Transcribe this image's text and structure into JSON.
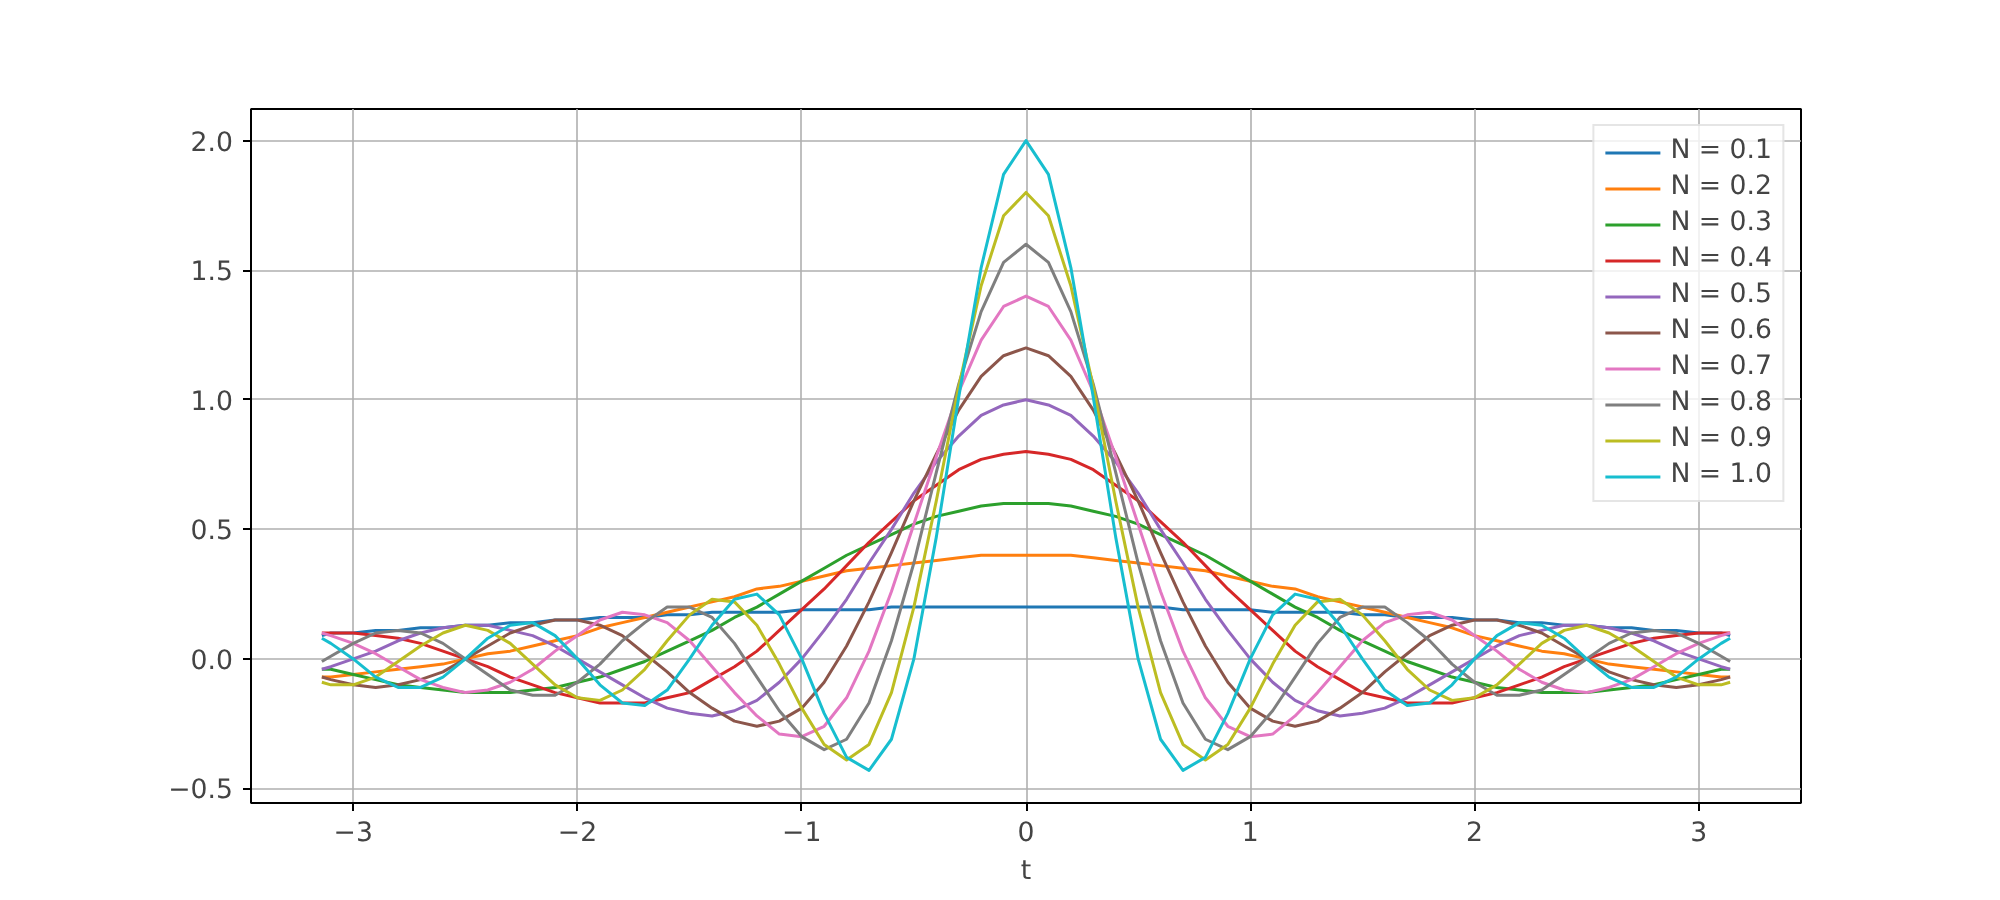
{
  "chart_data": {
    "type": "line",
    "xlabel": "t",
    "x": [
      -3.14,
      -3.1,
      -3.0,
      -2.9,
      -2.8,
      -2.7,
      -2.6,
      -2.5,
      -2.4,
      -2.3,
      -2.2,
      -2.1,
      -2.0,
      -1.9,
      -1.8,
      -1.7,
      -1.6,
      -1.5,
      -1.4,
      -1.3,
      -1.2,
      -1.1,
      -1.0,
      -0.9,
      -0.8,
      -0.7,
      -0.6,
      -0.5,
      -0.4,
      -0.3,
      -0.2,
      -0.1,
      0,
      0.1,
      0.2,
      0.3,
      0.4,
      0.5,
      0.6,
      0.7,
      0.8,
      0.9,
      1.0,
      1.1,
      1.2,
      1.3,
      1.4,
      1.5,
      1.6,
      1.7,
      1.8,
      1.9,
      2.0,
      2.1,
      2.2,
      2.3,
      2.4,
      2.5,
      2.6,
      2.7,
      2.8,
      2.9,
      3.0,
      3.1,
      3.14
    ],
    "series": [
      {
        "name": "N = 0.1",
        "color": "#1f77b4",
        "values": [
          0.09,
          0.1,
          0.1,
          0.11,
          0.11,
          0.12,
          0.12,
          0.13,
          0.13,
          0.14,
          0.14,
          0.15,
          0.15,
          0.16,
          0.16,
          0.16,
          0.17,
          0.17,
          0.18,
          0.18,
          0.18,
          0.18,
          0.19,
          0.19,
          0.19,
          0.19,
          0.2,
          0.2,
          0.2,
          0.2,
          0.2,
          0.2,
          0.2,
          0.2,
          0.2,
          0.2,
          0.2,
          0.2,
          0.2,
          0.19,
          0.19,
          0.19,
          0.19,
          0.18,
          0.18,
          0.18,
          0.18,
          0.17,
          0.17,
          0.16,
          0.16,
          0.16,
          0.15,
          0.15,
          0.14,
          0.14,
          0.13,
          0.13,
          0.12,
          0.12,
          0.11,
          0.11,
          0.1,
          0.1,
          0.09
        ]
      },
      {
        "name": "N = 0.2",
        "color": "#ff7f0e",
        "values": [
          -0.07,
          -0.07,
          -0.06,
          -0.05,
          -0.04,
          -0.03,
          -0.02,
          0,
          0.02,
          0.03,
          0.05,
          0.07,
          0.09,
          0.12,
          0.14,
          0.16,
          0.18,
          0.2,
          0.22,
          0.24,
          0.27,
          0.28,
          0.3,
          0.32,
          0.34,
          0.35,
          0.36,
          0.37,
          0.38,
          0.39,
          0.4,
          0.4,
          0.4,
          0.4,
          0.4,
          0.39,
          0.38,
          0.37,
          0.36,
          0.35,
          0.34,
          0.32,
          0.3,
          0.28,
          0.27,
          0.24,
          0.22,
          0.2,
          0.18,
          0.16,
          0.14,
          0.12,
          0.09,
          0.07,
          0.05,
          0.03,
          0.02,
          0,
          -0.02,
          -0.03,
          -0.04,
          -0.05,
          -0.06,
          -0.07,
          -0.07
        ]
      },
      {
        "name": "N = 0.3",
        "color": "#2ca02c",
        "values": [
          -0.04,
          -0.04,
          -0.06,
          -0.08,
          -0.1,
          -0.11,
          -0.12,
          -0.13,
          -0.13,
          -0.13,
          -0.12,
          -0.11,
          -0.09,
          -0.07,
          -0.04,
          -0.01,
          0.03,
          0.07,
          0.11,
          0.16,
          0.2,
          0.25,
          0.3,
          0.35,
          0.4,
          0.44,
          0.48,
          0.52,
          0.55,
          0.57,
          0.59,
          0.6,
          0.6,
          0.6,
          0.59,
          0.57,
          0.55,
          0.52,
          0.48,
          0.44,
          0.4,
          0.35,
          0.3,
          0.25,
          0.2,
          0.16,
          0.11,
          0.07,
          0.03,
          -0.01,
          -0.04,
          -0.07,
          -0.09,
          -0.11,
          -0.12,
          -0.13,
          -0.13,
          -0.13,
          -0.12,
          -0.11,
          -0.1,
          -0.08,
          -0.06,
          -0.04,
          -0.04
        ]
      },
      {
        "name": "N = 0.4",
        "color": "#d62728",
        "values": [
          0.1,
          0.1,
          0.1,
          0.09,
          0.08,
          0.06,
          0.03,
          0,
          -0.03,
          -0.07,
          -0.1,
          -0.13,
          -0.15,
          -0.17,
          -0.17,
          -0.17,
          -0.15,
          -0.13,
          -0.08,
          -0.03,
          0.03,
          0.11,
          0.19,
          0.27,
          0.36,
          0.45,
          0.53,
          0.61,
          0.67,
          0.73,
          0.77,
          0.79,
          0.8,
          0.79,
          0.77,
          0.73,
          0.67,
          0.61,
          0.53,
          0.45,
          0.36,
          0.27,
          0.19,
          0.11,
          0.03,
          -0.03,
          -0.08,
          -0.13,
          -0.15,
          -0.17,
          -0.17,
          -0.17,
          -0.15,
          -0.13,
          -0.1,
          -0.07,
          -0.03,
          0,
          0.03,
          0.06,
          0.08,
          0.09,
          0.1,
          0.1,
          0.1
        ]
      },
      {
        "name": "N = 0.5",
        "color": "#9467bd",
        "values": [
          -0.04,
          -0.03,
          0,
          0.03,
          0.07,
          0.1,
          0.12,
          0.13,
          0.13,
          0.11,
          0.09,
          0.05,
          0,
          -0.05,
          -0.1,
          -0.15,
          -0.19,
          -0.21,
          -0.22,
          -0.2,
          -0.16,
          -0.09,
          0,
          0.11,
          0.23,
          0.37,
          0.5,
          0.64,
          0.76,
          0.86,
          0.94,
          0.98,
          1.0,
          0.98,
          0.94,
          0.86,
          0.76,
          0.64,
          0.5,
          0.37,
          0.23,
          0.11,
          0,
          -0.09,
          -0.16,
          -0.2,
          -0.22,
          -0.21,
          -0.19,
          -0.15,
          -0.1,
          -0.05,
          0,
          0.05,
          0.09,
          0.11,
          0.13,
          0.13,
          0.12,
          0.1,
          0.07,
          0.03,
          0,
          -0.03,
          -0.04
        ]
      },
      {
        "name": "N = 0.6",
        "color": "#8c564b",
        "values": [
          -0.07,
          -0.08,
          -0.1,
          -0.11,
          -0.1,
          -0.08,
          -0.05,
          0,
          0.05,
          0.1,
          0.13,
          0.15,
          0.15,
          0.13,
          0.09,
          0.02,
          -0.05,
          -0.13,
          -0.19,
          -0.24,
          -0.26,
          -0.24,
          -0.19,
          -0.09,
          0.05,
          0.22,
          0.41,
          0.61,
          0.79,
          0.96,
          1.09,
          1.17,
          1.2,
          1.17,
          1.09,
          0.96,
          0.79,
          0.61,
          0.41,
          0.22,
          0.05,
          -0.09,
          -0.19,
          -0.24,
          -0.26,
          -0.24,
          -0.19,
          -0.13,
          -0.05,
          0.02,
          0.09,
          0.13,
          0.15,
          0.15,
          0.13,
          0.1,
          0.05,
          0,
          -0.05,
          -0.08,
          -0.1,
          -0.11,
          -0.1,
          -0.08,
          -0.07
        ]
      },
      {
        "name": "N = 0.7",
        "color": "#e377c2",
        "values": [
          0.1,
          0.09,
          0.06,
          0.02,
          -0.03,
          -0.08,
          -0.11,
          -0.13,
          -0.12,
          -0.09,
          -0.04,
          0.03,
          0.09,
          0.15,
          0.18,
          0.17,
          0.14,
          0.07,
          -0.03,
          -0.13,
          -0.22,
          -0.29,
          -0.3,
          -0.26,
          -0.15,
          0.03,
          0.26,
          0.52,
          0.78,
          1.03,
          1.23,
          1.36,
          1.4,
          1.36,
          1.23,
          1.03,
          0.78,
          0.52,
          0.26,
          0.03,
          -0.15,
          -0.26,
          -0.3,
          -0.29,
          -0.22,
          -0.13,
          -0.03,
          0.07,
          0.14,
          0.17,
          0.18,
          0.15,
          0.09,
          0.03,
          -0.04,
          -0.09,
          -0.12,
          -0.13,
          -0.11,
          -0.08,
          -0.03,
          0.02,
          0.06,
          0.09,
          0.1
        ]
      },
      {
        "name": "N = 0.8",
        "color": "#7f7f7f",
        "values": [
          -0.01,
          0.01,
          0.06,
          0.1,
          0.11,
          0.1,
          0.06,
          0,
          -0.06,
          -0.12,
          -0.14,
          -0.14,
          -0.09,
          -0.02,
          0.07,
          0.14,
          0.2,
          0.2,
          0.16,
          0.06,
          -0.07,
          -0.2,
          -0.3,
          -0.35,
          -0.31,
          -0.17,
          0.07,
          0.37,
          0.72,
          1.06,
          1.34,
          1.53,
          1.6,
          1.53,
          1.34,
          1.06,
          0.72,
          0.37,
          0.07,
          -0.17,
          -0.31,
          -0.35,
          -0.3,
          -0.2,
          -0.07,
          0.06,
          0.16,
          0.2,
          0.2,
          0.14,
          0.07,
          -0.02,
          -0.09,
          -0.14,
          -0.14,
          -0.12,
          -0.06,
          0,
          0.06,
          0.1,
          0.11,
          0.1,
          0.06,
          0.01,
          -0.01
        ]
      },
      {
        "name": "N = 0.9",
        "color": "#bcbd22",
        "values": [
          -0.09,
          -0.1,
          -0.1,
          -0.07,
          -0.01,
          0.05,
          0.1,
          0.13,
          0.11,
          0.06,
          -0.02,
          -0.1,
          -0.15,
          -0.16,
          -0.12,
          -0.04,
          0.07,
          0.17,
          0.23,
          0.22,
          0.13,
          -0.02,
          -0.19,
          -0.33,
          -0.39,
          -0.33,
          -0.13,
          0.2,
          0.61,
          1.05,
          1.44,
          1.71,
          1.8,
          1.71,
          1.44,
          1.05,
          0.61,
          0.2,
          -0.13,
          -0.33,
          -0.39,
          -0.33,
          -0.19,
          -0.02,
          0.13,
          0.22,
          0.23,
          0.17,
          0.07,
          -0.04,
          -0.12,
          -0.16,
          -0.15,
          -0.1,
          -0.02,
          0.06,
          0.11,
          0.13,
          0.1,
          0.05,
          -0.01,
          -0.07,
          -0.1,
          -0.1,
          -0.09
        ]
      },
      {
        "name": "N = 1.0",
        "color": "#17becf",
        "values": [
          0.08,
          0.06,
          0,
          -0.07,
          -0.11,
          -0.11,
          -0.07,
          0,
          0.08,
          0.13,
          0.14,
          0.09,
          0,
          -0.1,
          -0.17,
          -0.18,
          -0.12,
          0,
          0.13,
          0.23,
          0.25,
          0.17,
          0,
          -0.21,
          -0.38,
          -0.43,
          -0.31,
          0,
          0.47,
          1.01,
          1.51,
          1.87,
          2.0,
          1.87,
          1.51,
          1.01,
          0.47,
          0,
          -0.31,
          -0.43,
          -0.38,
          -0.21,
          0,
          0.17,
          0.25,
          0.23,
          0.13,
          0,
          -0.12,
          -0.18,
          -0.17,
          -0.1,
          0,
          0.09,
          0.14,
          0.13,
          0.08,
          0,
          -0.07,
          -0.11,
          -0.11,
          -0.07,
          0,
          0.06,
          0.08
        ]
      }
    ],
    "xlim": [
      -3.456,
      3.456
    ],
    "ylim": [
      -0.556,
      2.122
    ],
    "xticks": [
      {
        "value": -3,
        "label": "−3"
      },
      {
        "value": -2,
        "label": "−2"
      },
      {
        "value": -1,
        "label": "−1"
      },
      0,
      1,
      2,
      3
    ],
    "yticks": [
      {
        "value": -0.5,
        "label": "−0.5"
      },
      {
        "value": 0,
        "label": "0.0"
      },
      {
        "value": 0.5,
        "label": "0.5"
      },
      {
        "value": 1.0,
        "label": "1.0"
      },
      {
        "value": 1.5,
        "label": "1.5"
      },
      {
        "value": 2.0,
        "label": "2.0"
      }
    ],
    "grid": true,
    "legend": "top right",
    "marker": "none",
    "line_style": "solid"
  }
}
